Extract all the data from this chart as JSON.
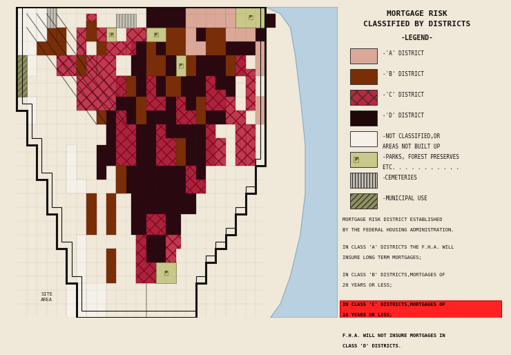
{
  "bg_color": "#f0e8d8",
  "title_line1": "MORTGAGE RISK",
  "title_line2": "CLASSIFIED BY DISTRICTS",
  "legend_header": "-LEGEND-",
  "legend_items": [
    {
      "label": "-'A' DISTRICT",
      "color": "#dba898",
      "hatch": null,
      "p_label": false
    },
    {
      "label": "-'B' DISTRICT",
      "color": "#7a2e08",
      "hatch": null,
      "p_label": false
    },
    {
      "label": "-'C' DISTRICT",
      "color": "#b82840",
      "hatch": "xx",
      "p_label": false
    },
    {
      "label": "-'D' DISTRICT",
      "color": "#1e0808",
      "hatch": null,
      "p_label": false
    },
    {
      "label": "-NOT CLASSIFIED,OR\nAREAS NOT BUILT UP",
      "color": "#f5f0e8",
      "hatch": null,
      "p_label": false
    },
    {
      "label": "-PARKS, FOREST PRESERVES\nETC. . . . . . . . . . .",
      "color": "#c8c88a",
      "hatch": null,
      "p_label": true
    },
    {
      "label": "-CEMETERIES",
      "color": "#c8c4b8",
      "hatch": "||||",
      "p_label": false
    },
    {
      "label": "-MUNICIPAL USE",
      "color": "#909060",
      "hatch": "////",
      "p_label": false
    }
  ],
  "note_blocks": [
    {
      "text": "MORTGAGE RISK DISTRICT ESTABLISHED\nBY THE FEDERAL HOUSING ADMINISTRATION.",
      "red_bg": false
    },
    {
      "text": "IN CLASS 'A' DISTRICTS THE F.H.A. WILL\nINSURE LONG TERM MORTGAGES;",
      "red_bg": false
    },
    {
      "text": "IN CLASS 'B' DISTRICTS,MORTGAGES OF\n20 YEARS OR LESS;",
      "red_bg": false
    },
    {
      "text": "IN CLASS 'C' DISTRICTS,MORTGAGES OF\n10 YEARS OR LESS;\n\nF.H.A. WILL NOT INSURE MORTGAGES IN\nCLASS 'D' DISTRICTS.",
      "red_bg": true
    }
  ],
  "site_area_text": "SITE\nAREA",
  "lake_color": "#b8d0e0",
  "lake_shore_color": "#88aac0",
  "a_color": "#dba898",
  "b_color": "#7a2e08",
  "c_color": "#b82840",
  "d_color": "#2a0810",
  "park_color": "#c8c88a",
  "cem_color": "#c8c4b8",
  "muni_color": "#909060",
  "unclass_color": "#f5f0e8",
  "border_color": "#111111",
  "red_box_color": "#ff2222",
  "text_color": "#111111"
}
